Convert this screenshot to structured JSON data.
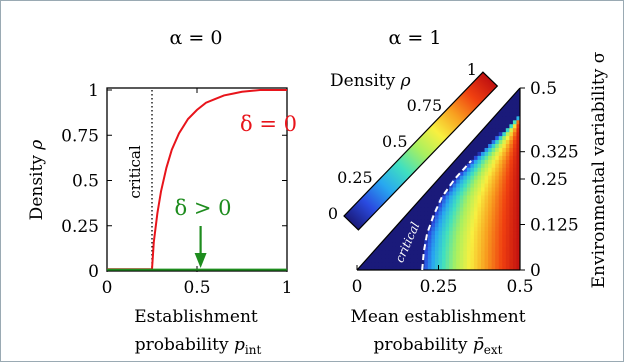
{
  "chart_data": [
    {
      "type": "line",
      "panel_title": "α = 0",
      "xlabel_line1": "Establishment",
      "xlabel_line2_prefix": "probability ",
      "xlabel_symbol": "p",
      "xlabel_subscript": "int",
      "ylabel_prefix": "Density ",
      "ylabel_symbol": "ρ",
      "xlim": [
        0,
        1
      ],
      "ylim": [
        0,
        1
      ],
      "xticks": [
        "0",
        "0.5",
        "1"
      ],
      "yticks": [
        "0",
        "0.25",
        "0.5",
        "0.75",
        "1"
      ],
      "critical_x": 0.25,
      "critical_label": "critical",
      "series": [
        {
          "name": "δ = 0",
          "color": "#e8141b",
          "x": [
            0,
            0.25,
            0.26,
            0.28,
            0.3,
            0.33,
            0.36,
            0.4,
            0.45,
            0.5,
            0.55,
            0.6,
            0.65,
            0.7,
            0.75,
            0.8,
            0.85,
            0.9,
            1.0
          ],
          "y": [
            0.01,
            0.01,
            0.16,
            0.32,
            0.44,
            0.57,
            0.67,
            0.76,
            0.84,
            0.89,
            0.93,
            0.95,
            0.97,
            0.98,
            0.99,
            0.995,
            1.0,
            1.0,
            1.0
          ]
        },
        {
          "name": "δ > 0",
          "color": "#1e8c1e",
          "x": [
            0,
            1
          ],
          "y": [
            0.008,
            0.008
          ]
        }
      ],
      "arrow_x": 0.52
    },
    {
      "type": "heatmap",
      "panel_title": "α = 1",
      "xlabel_line1": "Mean establishment",
      "xlabel_line2_prefix": "probability ",
      "xlabel_symbol": "p̄",
      "xlabel_subscript": "ext",
      "ylabel": "Environmental variability σ",
      "xlim": [
        0,
        0.5
      ],
      "ylim": [
        0,
        0.5
      ],
      "xticks": [
        "0",
        "0.25",
        "0.5"
      ],
      "yticks": [
        "0",
        "0.125",
        "0.25",
        "0.325",
        "0.5"
      ],
      "domain": "triangle y ≤ x",
      "critical_label": "critical",
      "critical_curve": {
        "x": [
          0.2,
          0.205,
          0.215,
          0.235,
          0.26,
          0.3,
          0.35
        ],
        "y": [
          0.0,
          0.05,
          0.1,
          0.15,
          0.2,
          0.25,
          0.3
        ]
      },
      "colorbar": {
        "label_prefix": "Density ",
        "label_symbol": "ρ",
        "ticks": [
          "0",
          "0.25",
          "0.5",
          "0.75",
          "1"
        ],
        "colors": [
          "#1a1a7a",
          "#2a4be0",
          "#28a8f0",
          "#40e0c0",
          "#a8f060",
          "#f8f040",
          "#f8a020",
          "#f04010",
          "#c01010"
        ]
      }
    }
  ]
}
